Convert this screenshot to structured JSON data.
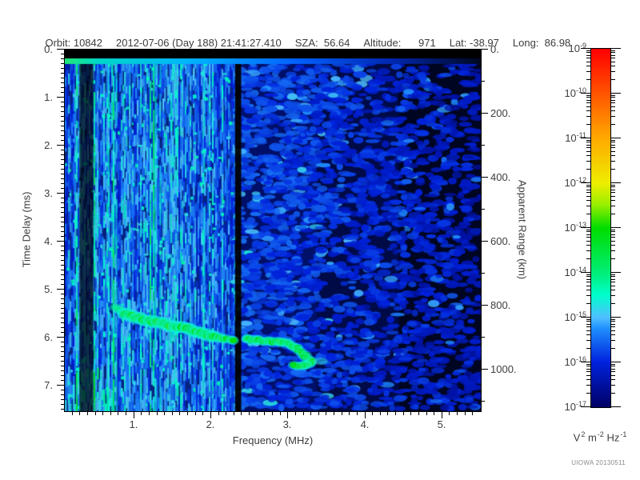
{
  "header": {
    "segments": [
      "Orbit: 10842",
      "2012-07-06 (Day 188) 21:41:27.410",
      "SZA:  56.64",
      "Altitude:      971",
      "Lat: -38.97",
      "Long:  86.98"
    ]
  },
  "footer": {
    "credit": "UIOWA 20130511"
  },
  "chart_data": {
    "type": "heatmap",
    "xlabel": "Frequency (MHz)",
    "ylabel": "Time Delay (ms)",
    "y2label": "Apparent Range (km)",
    "xlim": [
      0.1,
      5.5
    ],
    "ylim": [
      0,
      7.54
    ],
    "y2lim": [
      0,
      1131
    ],
    "x_tick_labels": [
      "1.",
      "2.",
      "3.",
      "4.",
      "5."
    ],
    "y_tick_labels": [
      "0.",
      "1.",
      "2.",
      "3.",
      "4.",
      "5.",
      "6.",
      "7."
    ],
    "y2_tick_labels": [
      "0.",
      "200.",
      "400.",
      "600.",
      "800.",
      "1000."
    ],
    "x_minor_step": 0.1,
    "y_minor_step": 0.1,
    "y2_minor_step": 100,
    "range_per_ms_km": 150,
    "grid": false,
    "legend": false,
    "colorbar": {
      "scale": "log",
      "tick_exponents": [
        -9,
        -10,
        -11,
        -12,
        -13,
        -14,
        -15,
        -16,
        -17
      ],
      "units_parts": [
        [
          "V",
          "2"
        ],
        [
          "m",
          "-2"
        ],
        [
          "Hz",
          "-1"
        ]
      ],
      "gradient": [
        [
          0.0,
          "#000066"
        ],
        [
          0.125,
          "#0022dd"
        ],
        [
          0.22,
          "#2090ff"
        ],
        [
          0.25,
          "#50c0ff"
        ],
        [
          0.3125,
          "#00ffcc"
        ],
        [
          0.375,
          "#00ee77"
        ],
        [
          0.5,
          "#00dd00"
        ],
        [
          0.565,
          "#99ee00"
        ],
        [
          0.625,
          "#eeee00"
        ],
        [
          0.75,
          "#ffaa00"
        ],
        [
          0.875,
          "#ff5500"
        ],
        [
          1.0,
          "#ff0000"
        ]
      ]
    },
    "features": {
      "noise_seed": 1234,
      "transmit_blank_ms": [
        0,
        0.18
      ],
      "surface_stripe_ms": [
        0.18,
        0.27
      ],
      "surface_stripe_gradient": [
        [
          0.0,
          "#22e877"
        ],
        [
          0.08,
          "#00d8c8"
        ],
        [
          0.3,
          "#00b4ff"
        ],
        [
          0.55,
          "#0064ff"
        ],
        [
          0.78,
          "#0028b4"
        ],
        [
          1.0,
          "#000820"
        ]
      ],
      "dark_bands_mhz": [
        [
          0.29,
          0.47,
          0.7
        ],
        [
          2.31,
          2.39,
          0.92
        ]
      ],
      "bright_columns_mhz": [
        0.66,
        0.76,
        1.27,
        1.33,
        1.9
      ],
      "receiver_gap_mhz": [
        2.31,
        2.42
      ],
      "echo_trace": [
        [
          0.74,
          5.37
        ],
        [
          0.86,
          5.5
        ],
        [
          0.95,
          5.55
        ],
        [
          1.1,
          5.62
        ],
        [
          1.25,
          5.68
        ],
        [
          1.4,
          5.72
        ],
        [
          1.55,
          5.77
        ],
        [
          1.7,
          5.83
        ],
        [
          1.85,
          5.9
        ],
        [
          2.0,
          5.97
        ],
        [
          2.15,
          6.02
        ],
        [
          2.28,
          6.05
        ],
        [
          2.45,
          6.04
        ],
        [
          2.6,
          6.06
        ],
        [
          2.75,
          6.08
        ],
        [
          2.9,
          6.1
        ],
        [
          3.02,
          6.14
        ],
        [
          3.12,
          6.24
        ],
        [
          3.22,
          6.38
        ],
        [
          3.3,
          6.52
        ],
        [
          3.2,
          6.6
        ],
        [
          3.08,
          6.6
        ]
      ],
      "echo_tail_point": [
        3.42,
        6.5
      ]
    }
  }
}
